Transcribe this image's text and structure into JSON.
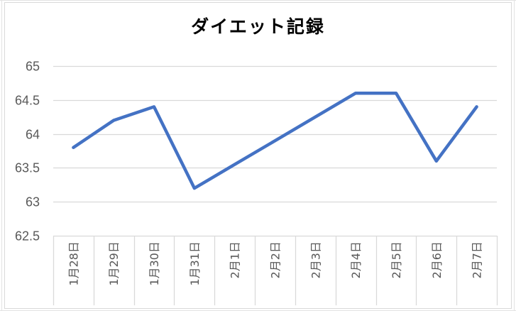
{
  "chart_data": {
    "type": "line",
    "title": "ダイエット記録",
    "xlabel": "",
    "ylabel": "",
    "categories": [
      "1月28日",
      "1月29日",
      "1月30日",
      "1月31日",
      "2月1日",
      "2月2日",
      "2月3日",
      "2月4日",
      "2月5日",
      "2月6日",
      "2月7日"
    ],
    "series": [
      {
        "values": [
          63.8,
          64.2,
          64.4,
          63.2,
          63.55,
          63.9,
          64.25,
          64.6,
          64.6,
          63.6,
          64.4
        ],
        "color": "#4472c4"
      }
    ],
    "ylim": [
      62.5,
      65
    ],
    "yticks": [
      62.5,
      63,
      63.5,
      64,
      64.5,
      65
    ],
    "ytick_labels": [
      "62.5",
      "63",
      "63.5",
      "64",
      "64.5",
      "65"
    ],
    "grid": true,
    "legend": "none"
  }
}
